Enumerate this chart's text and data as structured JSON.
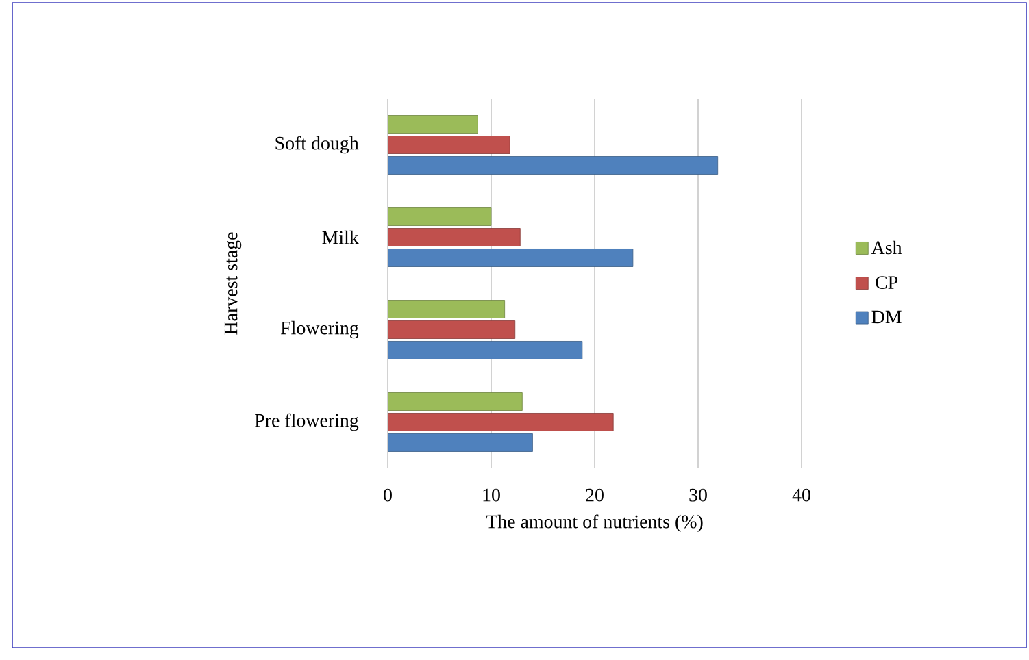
{
  "chart_data": {
    "type": "bar",
    "orientation": "horizontal",
    "xlabel": "The amount of nutrients (%)",
    "ylabel": "Harvest stage",
    "categories": [
      "Soft dough",
      "Milk",
      "Flowering",
      "Pre flowering"
    ],
    "series": [
      {
        "name": "DM",
        "color": "#4f81bd",
        "values": [
          31.9,
          23.7,
          18.8,
          14.0
        ]
      },
      {
        "name": "CP",
        "color": "#c0504d",
        "values": [
          11.8,
          12.8,
          12.3,
          21.8
        ]
      },
      {
        "name": "Ash",
        "color": "#9bbb59",
        "values": [
          8.7,
          10.0,
          11.3,
          13.0
        ]
      }
    ],
    "xlim": [
      0,
      40
    ],
    "xticks": [
      0,
      10,
      20,
      30,
      40
    ],
    "grid": "x",
    "legend": "right"
  }
}
